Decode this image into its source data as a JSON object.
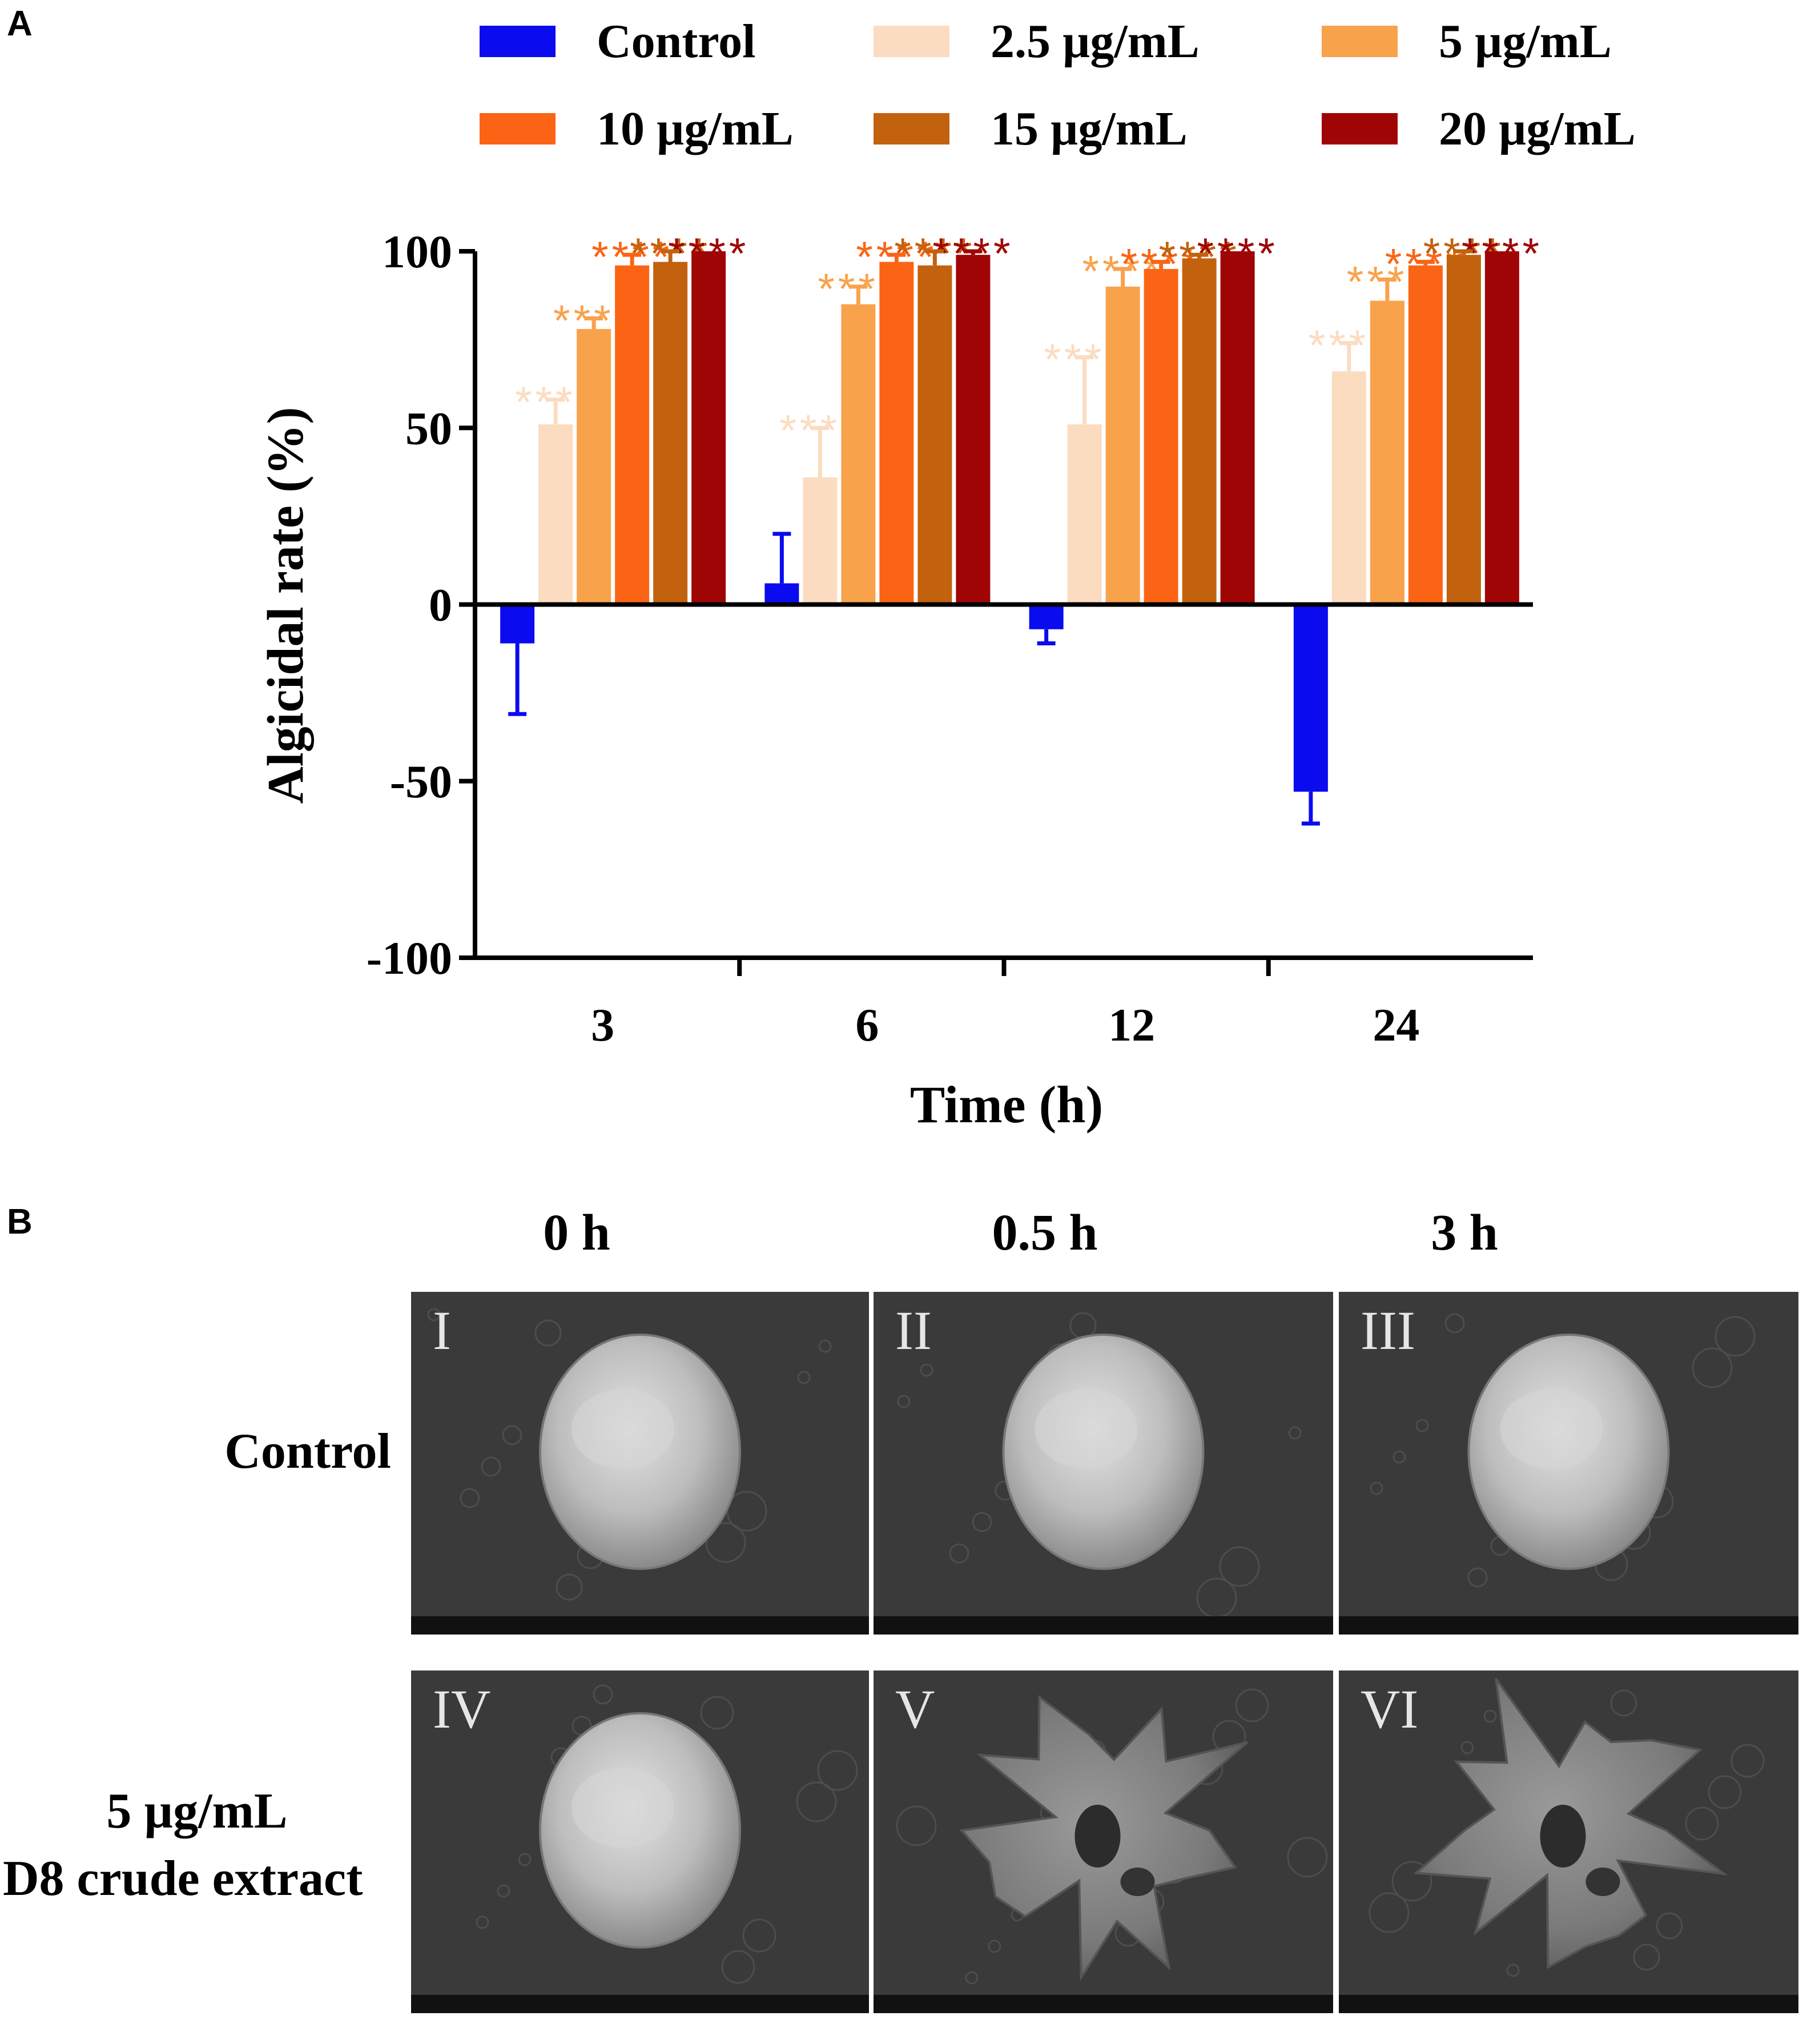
{
  "panels": {
    "a_letter": "A",
    "b_letter": "B"
  },
  "chart_data": {
    "type": "bar",
    "title": "",
    "xlabel": "Time (h)",
    "ylabel": "Algicidal rate (%)",
    "categories": [
      "3",
      "6",
      "12",
      "24"
    ],
    "ylim": [
      -100,
      100
    ],
    "yticks": [
      "100",
      "50",
      "0",
      "-50",
      "-100"
    ],
    "grid": false,
    "legend_position": "top",
    "significance_mark": "****",
    "series": [
      {
        "name": "Control",
        "color": "#0b0bf0",
        "values": [
          -11,
          6,
          -7,
          -53
        ],
        "errors": [
          20,
          14,
          4,
          9
        ],
        "significance": [
          false,
          false,
          false,
          false
        ]
      },
      {
        "name": "2.5 µg/mL",
        "color": "#fbdcc0",
        "values": [
          51,
          36,
          51,
          66
        ],
        "errors": [
          7,
          14,
          19,
          8
        ],
        "significance": [
          true,
          true,
          true,
          true
        ]
      },
      {
        "name": "5 µg/mL",
        "color": "#f9a24c",
        "values": [
          78,
          85,
          90,
          86
        ],
        "errors": [
          3,
          5,
          5,
          6
        ],
        "significance": [
          true,
          true,
          true,
          true
        ]
      },
      {
        "name": "10 µg/mL",
        "color": "#fb6415",
        "values": [
          96,
          97,
          95,
          96
        ],
        "errors": [
          3,
          2,
          2,
          1
        ],
        "significance": [
          true,
          true,
          true,
          true
        ]
      },
      {
        "name": "15 µg/mL",
        "color": "#c2620e",
        "values": [
          97,
          96,
          98,
          99
        ],
        "errors": [
          3,
          4,
          1,
          1
        ],
        "significance": [
          true,
          true,
          true,
          true
        ]
      },
      {
        "name": "20 µg/mL",
        "color": "#a00505",
        "values": [
          100,
          99,
          100,
          100
        ],
        "errors": [
          0,
          1,
          0,
          0
        ],
        "significance": [
          true,
          true,
          true,
          true
        ]
      }
    ]
  },
  "panel_b": {
    "column_headers": [
      "0 h",
      "0.5 h",
      "3 h"
    ],
    "row_labels": [
      {
        "lines": [
          "Control"
        ]
      },
      {
        "lines": [
          "5 µg/mL",
          "D8 crude extract"
        ]
      }
    ],
    "images": [
      {
        "label": "I",
        "state": "intact"
      },
      {
        "label": "II",
        "state": "intact"
      },
      {
        "label": "III",
        "state": "intact"
      },
      {
        "label": "IV",
        "state": "intact"
      },
      {
        "label": "V",
        "state": "damaged"
      },
      {
        "label": "VI",
        "state": "damaged"
      }
    ]
  }
}
